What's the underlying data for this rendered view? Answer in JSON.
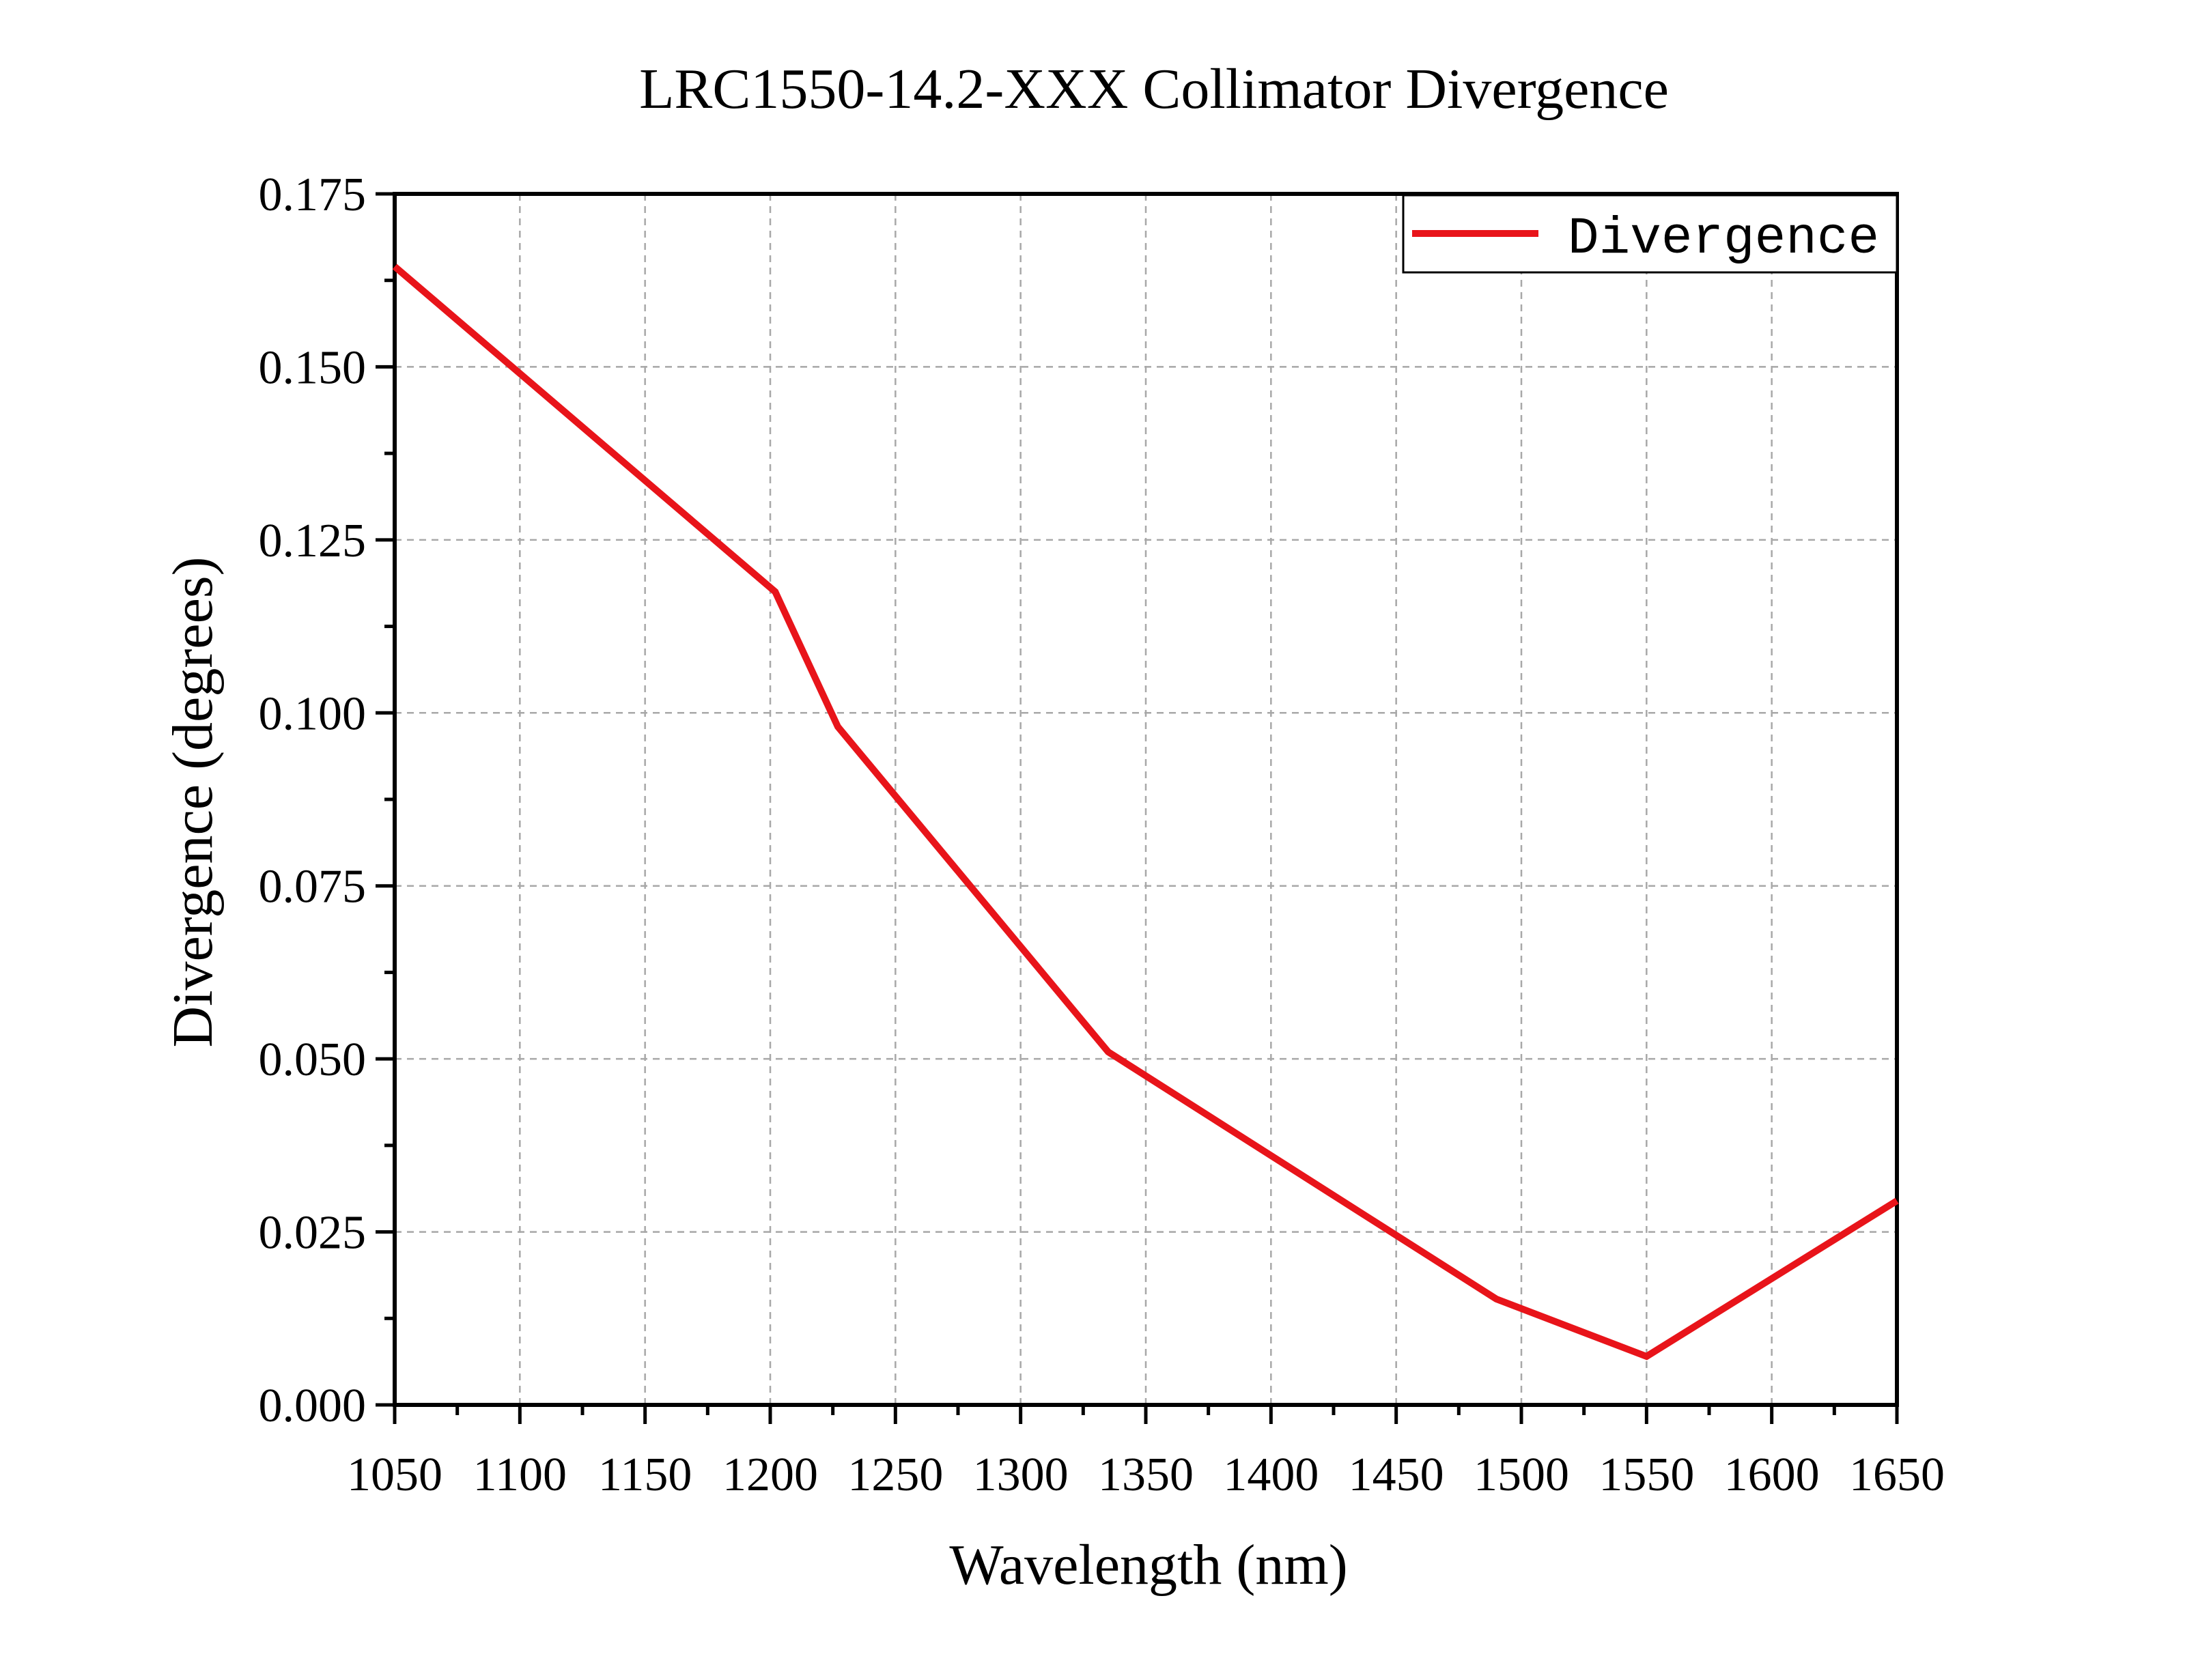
{
  "chart_data": {
    "type": "line",
    "title": "LRC1550-14.2-XXX Collimator Divergence",
    "xlabel": "Wavelength (nm)",
    "ylabel": "Divergence (degrees)",
    "xlim": [
      1050,
      1650
    ],
    "ylim": [
      0.0,
      0.175
    ],
    "x_ticks": [
      "1050",
      "1100",
      "1150",
      "1200",
      "1250",
      "1300",
      "1350",
      "1400",
      "1450",
      "1500",
      "1550",
      "1600",
      "1650"
    ],
    "y_ticks": [
      "0.000",
      "0.025",
      "0.050",
      "0.075",
      "0.100",
      "0.125",
      "0.150",
      "0.175"
    ],
    "grid": true,
    "legend_position": "top-right",
    "series": [
      {
        "name": "Divergence",
        "color": "#e8141a",
        "x": [
          1050,
          1202,
          1227,
          1335,
          1490,
          1550,
          1650
        ],
        "y": [
          0.1645,
          0.1175,
          0.098,
          0.051,
          0.0153,
          0.007,
          0.0295
        ]
      }
    ]
  }
}
